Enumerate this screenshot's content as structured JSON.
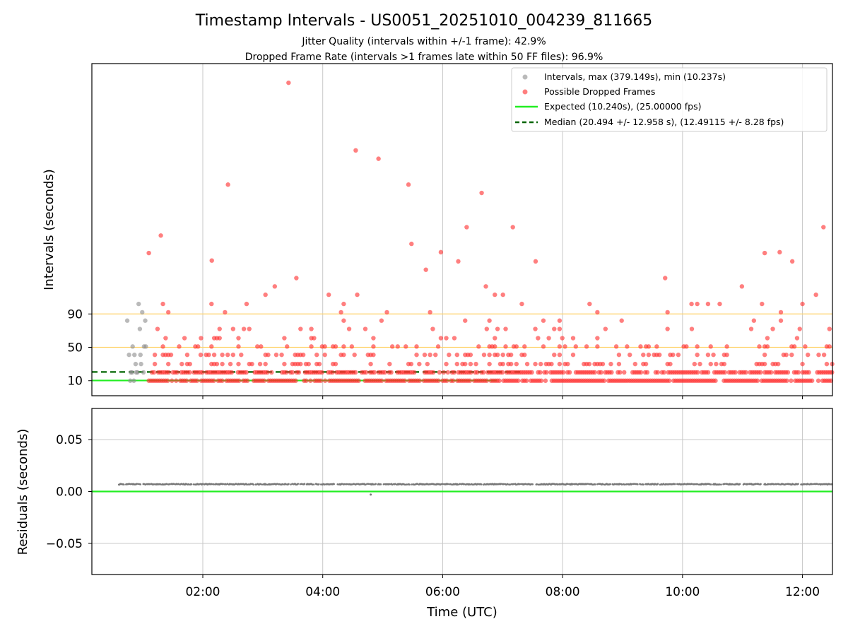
{
  "chart_data": [
    {
      "type": "scatter",
      "title": "Timestamp Intervals - US0051_20251010_004239_811665",
      "subtitle_1": "Jitter Quality (intervals within +/-1 frame): 42.9%",
      "subtitle_2": "Dropped Frame Rate (intervals >1 frames late within 50 FF files): 96.9%",
      "ylabel": "Intervals (seconds)",
      "xlabel": "",
      "xlim_hours": [
        0.15,
        12.5
      ],
      "ylim": [
        -8,
        390
      ],
      "ytick_values": [
        10,
        50,
        90
      ],
      "ytick_labels": [
        "10",
        "50",
        "90"
      ],
      "xtick_values": [
        2,
        4,
        6,
        8,
        10,
        12
      ],
      "grid": true,
      "reference_lines": [
        {
          "name": "Expected (10.240s), (25.00000 fps)",
          "value": 10.24,
          "color": "#22ee22",
          "style": "solid"
        },
        {
          "name": "Median (20.494 +/- 12.958 s), (12.49115 +/- 8.28 fps)",
          "value": 20.494,
          "color": "#006400",
          "style": "dashed"
        },
        {
          "name": "band-50",
          "value": 50,
          "color": "#ffd36b",
          "style": "solid"
        },
        {
          "name": "band-90",
          "value": 90,
          "color": "#ffd36b",
          "style": "solid"
        }
      ],
      "legend": {
        "position": "top-right",
        "entries": [
          {
            "label": "Intervals, max (379.149s), min (10.237s)",
            "color": "#8c8c8c",
            "marker": "dot"
          },
          {
            "label": "Possible Dropped Frames",
            "color": "#ff2a2a",
            "marker": "dot"
          },
          {
            "label": "Expected (10.240s), (25.00000 fps)",
            "color": "#22ee22",
            "marker": "line"
          },
          {
            "label": "Median (20.494 +/- 12.958 s), (12.49115 +/- 8.28 fps)",
            "color": "#006400",
            "marker": "dashed"
          }
        ]
      },
      "series": [
        {
          "name": "Intervals",
          "color": "#8c8c8c",
          "points": [
            [
              0.74,
              82
            ],
            [
              0.77,
              41
            ],
            [
              0.8,
              20
            ],
            [
              0.83,
              51
            ],
            [
              0.86,
              41
            ],
            [
              0.88,
              30
            ],
            [
              0.91,
              20
            ],
            [
              0.93,
              102
            ],
            [
              0.95,
              72
            ],
            [
              0.97,
              30
            ],
            [
              0.99,
              92
            ],
            [
              1.02,
              51
            ],
            [
              1.04,
              82
            ],
            [
              0.79,
              10
            ],
            [
              0.85,
              10
            ],
            [
              0.89,
              20
            ],
            [
              0.96,
              41
            ],
            [
              1.01,
              20
            ],
            [
              0.82,
              20
            ],
            [
              1.05,
              51
            ]
          ]
        },
        {
          "name": "Possible Dropped Frames",
          "color": "#ff2a2a",
          "outliers": [
            [
              1.1,
              163
            ],
            [
              1.3,
              184
            ],
            [
              1.97,
              61
            ],
            [
              2.15,
              154
            ],
            [
              2.42,
              245
            ],
            [
              2.97,
              51
            ],
            [
              3.2,
              123
            ],
            [
              3.43,
              367
            ],
            [
              3.56,
              133
            ],
            [
              4.1,
              113
            ],
            [
              4.55,
              286
            ],
            [
              4.93,
              276
            ],
            [
              5.43,
              245
            ],
            [
              5.48,
              174
            ],
            [
              5.72,
              143
            ],
            [
              5.97,
              164
            ],
            [
              6.26,
              153
            ],
            [
              6.4,
              194
            ],
            [
              6.65,
              235
            ],
            [
              6.72,
              123
            ],
            [
              7.17,
              194
            ],
            [
              7.55,
              153
            ],
            [
              8.45,
              102
            ],
            [
              9.71,
              133
            ],
            [
              10.15,
              102
            ],
            [
              10.62,
              102
            ],
            [
              10.99,
              123
            ],
            [
              11.37,
              163
            ],
            [
              11.62,
              164
            ],
            [
              11.83,
              153
            ],
            [
              12.35,
              194
            ]
          ],
          "y_levels": [
            10,
            20,
            30,
            41,
            51,
            61,
            72,
            82,
            92,
            102,
            113
          ],
          "x_range_hours": [
            1.1,
            12.5
          ]
        }
      ]
    },
    {
      "type": "scatter",
      "title": "",
      "xlabel": "Time (UTC)",
      "ylabel": "Residuals (seconds)",
      "xlim_hours": [
        0.15,
        12.5
      ],
      "ylim": [
        -0.08,
        0.08
      ],
      "ytick_values": [
        0.05,
        0.0,
        -0.05
      ],
      "ytick_labels": [
        "0.05",
        "0.00",
        "−0.05"
      ],
      "xtick_values": [
        2,
        4,
        6,
        8,
        10,
        12
      ],
      "xtick_labels": [
        "02:00",
        "04:00",
        "06:00",
        "08:00",
        "10:00",
        "12:00"
      ],
      "grid": true,
      "reference_lines": [
        {
          "name": "zero",
          "value": 0.0,
          "color": "#22ee22",
          "style": "solid"
        }
      ],
      "series": [
        {
          "name": "Residuals",
          "color": "#777777",
          "typical_value": 0.007,
          "x_range_hours": [
            0.6,
            12.5
          ],
          "outlier": [
            4.8,
            -0.003
          ]
        }
      ]
    }
  ]
}
